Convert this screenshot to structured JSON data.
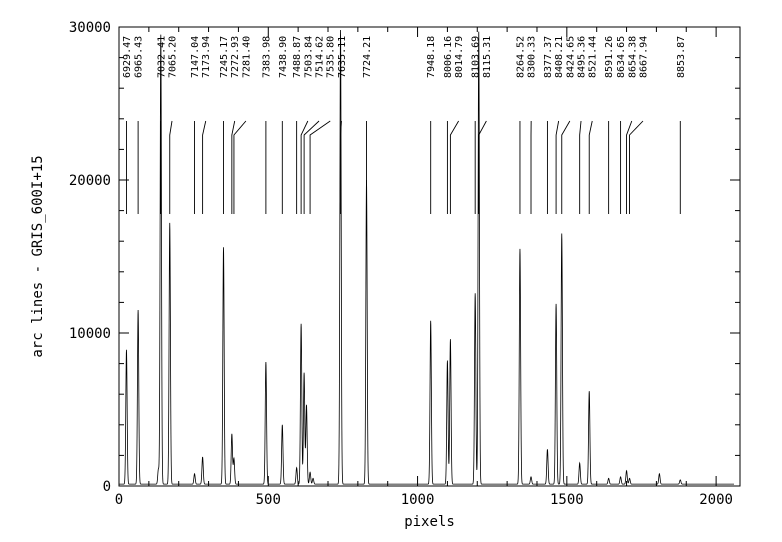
{
  "chart_data": {
    "type": "line",
    "title": "",
    "xlabel": "pixels",
    "ylabel": "arc lines - GRIS_600I+15",
    "xlim": [
      0,
      2080
    ],
    "ylim": [
      0,
      30000
    ],
    "x_ticks": [
      0,
      500,
      1000,
      1500,
      2000
    ],
    "y_ticks": [
      0,
      10000,
      20000,
      30000
    ],
    "baseline": 120,
    "peaks": [
      {
        "x": 25,
        "y": 8900
      },
      {
        "x": 64,
        "y": 11500
      },
      {
        "x": 132,
        "y": 1100
      },
      {
        "x": 140,
        "y": 29500
      },
      {
        "x": 170,
        "y": 17200
      },
      {
        "x": 253,
        "y": 800
      },
      {
        "x": 280,
        "y": 1900
      },
      {
        "x": 350,
        "y": 15600
      },
      {
        "x": 378,
        "y": 3400
      },
      {
        "x": 385,
        "y": 1800
      },
      {
        "x": 492,
        "y": 8100
      },
      {
        "x": 547,
        "y": 4000
      },
      {
        "x": 595,
        "y": 1200
      },
      {
        "x": 610,
        "y": 10600
      },
      {
        "x": 620,
        "y": 7400
      },
      {
        "x": 628,
        "y": 5300
      },
      {
        "x": 640,
        "y": 900
      },
      {
        "x": 650,
        "y": 500
      },
      {
        "x": 742,
        "y": 29800
      },
      {
        "x": 829,
        "y": 20000
      },
      {
        "x": 1044,
        "y": 10800
      },
      {
        "x": 1100,
        "y": 8200
      },
      {
        "x": 1110,
        "y": 9600
      },
      {
        "x": 1193,
        "y": 12600
      },
      {
        "x": 1205,
        "y": 29700
      },
      {
        "x": 1343,
        "y": 15500
      },
      {
        "x": 1380,
        "y": 600
      },
      {
        "x": 1435,
        "y": 2400
      },
      {
        "x": 1464,
        "y": 11900
      },
      {
        "x": 1483,
        "y": 16500
      },
      {
        "x": 1543,
        "y": 1500
      },
      {
        "x": 1575,
        "y": 6200
      },
      {
        "x": 1640,
        "y": 500
      },
      {
        "x": 1680,
        "y": 600
      },
      {
        "x": 1700,
        "y": 1000
      },
      {
        "x": 1710,
        "y": 500
      },
      {
        "x": 1810,
        "y": 800
      },
      {
        "x": 1880,
        "y": 400
      }
    ],
    "line_ids": [
      {
        "label": "6929.47",
        "pixel": 25
      },
      {
        "label": "6965.43",
        "pixel": 64
      },
      {
        "label": "7032.41",
        "pixel": 140
      },
      {
        "label": "7065.20",
        "pixel": 170
      },
      {
        "label": "7147.04",
        "pixel": 253
      },
      {
        "label": "7173.94",
        "pixel": 280
      },
      {
        "label": "7245.17",
        "pixel": 350
      },
      {
        "label": "7272.93",
        "pixel": 378
      },
      {
        "label": "7281.40",
        "pixel": 385
      },
      {
        "label": "7383.98",
        "pixel": 492
      },
      {
        "label": "7438.90",
        "pixel": 547
      },
      {
        "label": "7488.87",
        "pixel": 595
      },
      {
        "label": "7503.84",
        "pixel": 610
      },
      {
        "label": "7514.62",
        "pixel": 620
      },
      {
        "label": "7535.80",
        "pixel": 640
      },
      {
        "label": "7635.11",
        "pixel": 742
      },
      {
        "label": "7724.21",
        "pixel": 829
      },
      {
        "label": "7948.18",
        "pixel": 1044
      },
      {
        "label": "8006.16",
        "pixel": 1100
      },
      {
        "label": "8014.79",
        "pixel": 1110
      },
      {
        "label": "8103.69",
        "pixel": 1193
      },
      {
        "label": "8115.31",
        "pixel": 1205
      },
      {
        "label": "8264.52",
        "pixel": 1343
      },
      {
        "label": "8300.33",
        "pixel": 1380
      },
      {
        "label": "8377.37",
        "pixel": 1435
      },
      {
        "label": "8408.21",
        "pixel": 1464
      },
      {
        "label": "8424.65",
        "pixel": 1483
      },
      {
        "label": "8495.36",
        "pixel": 1543
      },
      {
        "label": "8521.44",
        "pixel": 1575
      },
      {
        "label": "8591.26",
        "pixel": 1640
      },
      {
        "label": "8634.65",
        "pixel": 1680
      },
      {
        "label": "8654.38",
        "pixel": 1700
      },
      {
        "label": "8667.94",
        "pixel": 1710
      },
      {
        "label": "8853.87",
        "pixel": 1880
      }
    ]
  }
}
